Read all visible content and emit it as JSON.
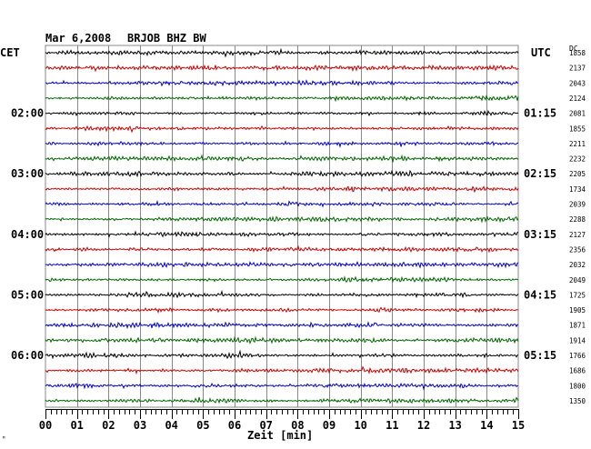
{
  "header": {
    "date": "Mar 6,2008",
    "station": "BRJOB BHZ BW",
    "left_zone": "CET",
    "right_zone": "UTC",
    "dc_label": "DC"
  },
  "footer": {
    "axis_title": "Zeit [min]",
    "corner_mark": "ᴹ"
  },
  "colors": {
    "black": "#000000",
    "red": "#cc0000",
    "blue": "#0000cc",
    "green": "#006600",
    "grid": "#888888"
  },
  "chart_data": {
    "type": "line",
    "title": "Mar 6,2008    BRJOB BHZ BW",
    "xlabel": "Zeit [min]",
    "xlim": [
      0,
      15
    ],
    "x_ticks": [
      "00",
      "01",
      "02",
      "03",
      "04",
      "05",
      "06",
      "07",
      "08",
      "09",
      "10",
      "11",
      "12",
      "13",
      "14",
      "15"
    ],
    "trace_colors_cycle": [
      "black",
      "red",
      "blue",
      "green"
    ],
    "left_time_labels": [
      {
        "row": 4,
        "text": "02:00"
      },
      {
        "row": 8,
        "text": "03:00"
      },
      {
        "row": 12,
        "text": "04:00"
      },
      {
        "row": 16,
        "text": "05:00"
      },
      {
        "row": 20,
        "text": "06:00"
      }
    ],
    "right_time_labels": [
      {
        "row": 4,
        "text": "01:15"
      },
      {
        "row": 8,
        "text": "02:15"
      },
      {
        "row": 12,
        "text": "03:15"
      },
      {
        "row": 16,
        "text": "04:15"
      },
      {
        "row": 20,
        "text": "05:15"
      }
    ],
    "dc_values": [
      "1858",
      "2137",
      "2043",
      "2124",
      "2081",
      "1855",
      "2211",
      "2232",
      "2205",
      "1734",
      "2039",
      "2288",
      "2127",
      "2356",
      "2032",
      "2049",
      "1725",
      "1905",
      "1871",
      "1914",
      "1766",
      "1686",
      "1800",
      "1350"
    ]
  }
}
